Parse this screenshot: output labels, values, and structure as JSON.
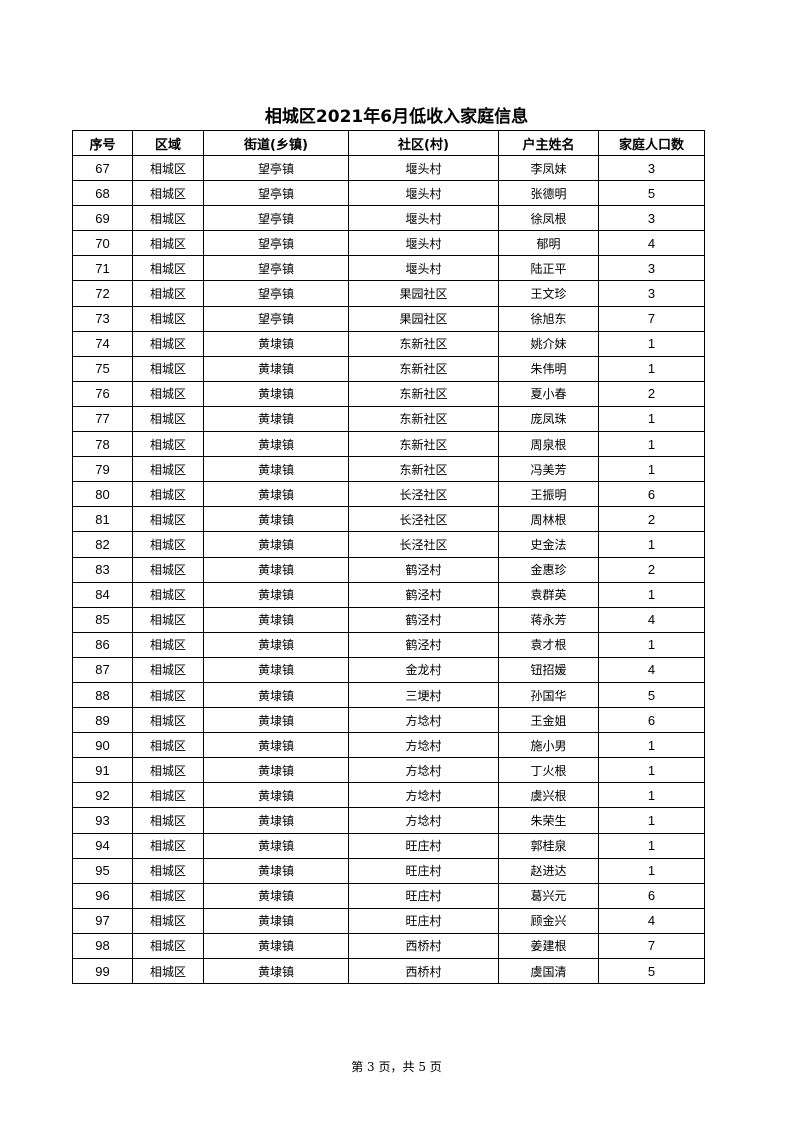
{
  "title": "相城区2021年6月低收入家庭信息",
  "columns": [
    "序号",
    "区域",
    "街道(乡镇)",
    "社区(村)",
    "户主姓名",
    "家庭人口数"
  ],
  "rows": [
    [
      "67",
      "相城区",
      "望亭镇",
      "堰头村",
      "李凤妹",
      "3"
    ],
    [
      "68",
      "相城区",
      "望亭镇",
      "堰头村",
      "张德明",
      "5"
    ],
    [
      "69",
      "相城区",
      "望亭镇",
      "堰头村",
      "徐凤根",
      "3"
    ],
    [
      "70",
      "相城区",
      "望亭镇",
      "堰头村",
      "郁明",
      "4"
    ],
    [
      "71",
      "相城区",
      "望亭镇",
      "堰头村",
      "陆正平",
      "3"
    ],
    [
      "72",
      "相城区",
      "望亭镇",
      "果园社区",
      "王文珍",
      "3"
    ],
    [
      "73",
      "相城区",
      "望亭镇",
      "果园社区",
      "徐旭东",
      "7"
    ],
    [
      "74",
      "相城区",
      "黄埭镇",
      "东新社区",
      "姚介妹",
      "1"
    ],
    [
      "75",
      "相城区",
      "黄埭镇",
      "东新社区",
      "朱伟明",
      "1"
    ],
    [
      "76",
      "相城区",
      "黄埭镇",
      "东新社区",
      "夏小春",
      "2"
    ],
    [
      "77",
      "相城区",
      "黄埭镇",
      "东新社区",
      "庞凤珠",
      "1"
    ],
    [
      "78",
      "相城区",
      "黄埭镇",
      "东新社区",
      "周泉根",
      "1"
    ],
    [
      "79",
      "相城区",
      "黄埭镇",
      "东新社区",
      "冯美芳",
      "1"
    ],
    [
      "80",
      "相城区",
      "黄埭镇",
      "长泾社区",
      "王振明",
      "6"
    ],
    [
      "81",
      "相城区",
      "黄埭镇",
      "长泾社区",
      "周林根",
      "2"
    ],
    [
      "82",
      "相城区",
      "黄埭镇",
      "长泾社区",
      "史金法",
      "1"
    ],
    [
      "83",
      "相城区",
      "黄埭镇",
      "鹤泾村",
      "金惠珍",
      "2"
    ],
    [
      "84",
      "相城区",
      "黄埭镇",
      "鹤泾村",
      "袁群英",
      "1"
    ],
    [
      "85",
      "相城区",
      "黄埭镇",
      "鹤泾村",
      "蒋永芳",
      "4"
    ],
    [
      "86",
      "相城区",
      "黄埭镇",
      "鹤泾村",
      "袁才根",
      "1"
    ],
    [
      "87",
      "相城区",
      "黄埭镇",
      "金龙村",
      "钮招媛",
      "4"
    ],
    [
      "88",
      "相城区",
      "黄埭镇",
      "三埂村",
      "孙国华",
      "5"
    ],
    [
      "89",
      "相城区",
      "黄埭镇",
      "方埝村",
      "王金姐",
      "6"
    ],
    [
      "90",
      "相城区",
      "黄埭镇",
      "方埝村",
      "施小男",
      "1"
    ],
    [
      "91",
      "相城区",
      "黄埭镇",
      "方埝村",
      "丁火根",
      "1"
    ],
    [
      "92",
      "相城区",
      "黄埭镇",
      "方埝村",
      "虞兴根",
      "1"
    ],
    [
      "93",
      "相城区",
      "黄埭镇",
      "方埝村",
      "朱荣生",
      "1"
    ],
    [
      "94",
      "相城区",
      "黄埭镇",
      "旺庄村",
      "郭桂泉",
      "1"
    ],
    [
      "95",
      "相城区",
      "黄埭镇",
      "旺庄村",
      "赵进达",
      "1"
    ],
    [
      "96",
      "相城区",
      "黄埭镇",
      "旺庄村",
      "葛兴元",
      "6"
    ],
    [
      "97",
      "相城区",
      "黄埭镇",
      "旺庄村",
      "顾金兴",
      "4"
    ],
    [
      "98",
      "相城区",
      "黄埭镇",
      "西桥村",
      "姜建根",
      "7"
    ],
    [
      "99",
      "相城区",
      "黄埭镇",
      "西桥村",
      "虞国清",
      "5"
    ]
  ],
  "footer": "第 3 页，共 5 页"
}
